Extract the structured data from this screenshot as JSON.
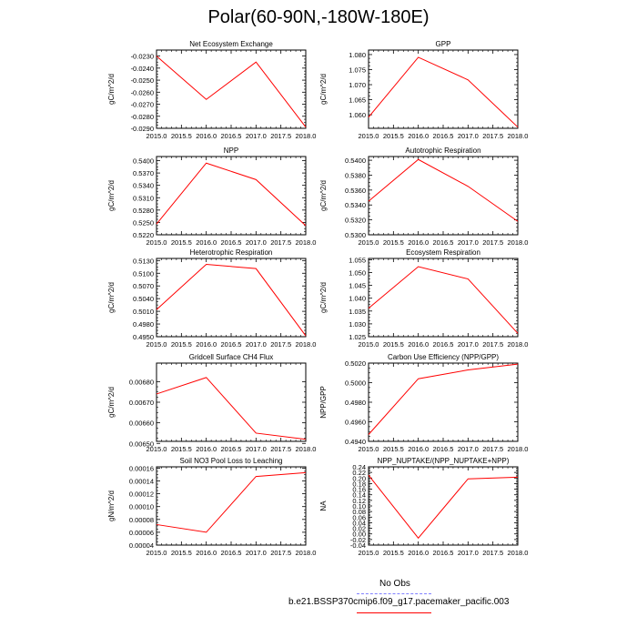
{
  "title": "Polar(60-90N,-180W-180E)",
  "legend": {
    "entries": [
      {
        "label": "No Obs",
        "color": "#8080ff",
        "style": "dashed"
      },
      {
        "label": "b.e21.BSSP370cmip6.f09_g17.pacemaker_pacific.003",
        "color": "#ff0000",
        "style": "solid"
      }
    ]
  },
  "chart_data": [
    {
      "type": "line",
      "title": "Net Ecosystem Exchange",
      "ylabel": "gC/m^2/d",
      "x": [
        2015.0,
        2016.0,
        2017.0,
        2018.0
      ],
      "xlim": [
        2015.0,
        2018.0
      ],
      "xticks": [
        "2015.0",
        "2015.5",
        "2016.0",
        "2016.5",
        "2017.0",
        "2017.5",
        "2018.0"
      ],
      "ylim": [
        -0.029,
        -0.0225
      ],
      "yticks": [
        "-0.0230",
        "-0.0240",
        "-0.0250",
        "-0.0260",
        "-0.0270",
        "-0.0280",
        "-0.0290"
      ],
      "ytick_values": [
        -0.023,
        -0.024,
        -0.025,
        -0.026,
        -0.027,
        -0.028,
        -0.029
      ],
      "series": [
        {
          "color": "#ff0000",
          "values": [
            -0.023,
            -0.0266,
            -0.0235,
            -0.0289
          ]
        }
      ]
    },
    {
      "type": "line",
      "title": "GPP",
      "ylabel": "gC/m^2/d",
      "x": [
        2015.0,
        2016.0,
        2017.0,
        2018.0
      ],
      "xlim": [
        2015.0,
        2018.0
      ],
      "xticks": [
        "2015.0",
        "2015.5",
        "2016.0",
        "2016.5",
        "2017.0",
        "2017.5",
        "2018.0"
      ],
      "ylim": [
        1.0555,
        1.0815
      ],
      "yticks": [
        "1.080",
        "1.075",
        "1.070",
        "1.065",
        "1.060"
      ],
      "ytick_values": [
        1.08,
        1.075,
        1.07,
        1.065,
        1.06
      ],
      "series": [
        {
          "color": "#ff0000",
          "values": [
            1.0592,
            1.0791,
            1.0716,
            1.0559
          ]
        }
      ]
    },
    {
      "type": "line",
      "title": "NPP",
      "ylabel": "gC/m^2/d",
      "x": [
        2015.0,
        2016.0,
        2017.0,
        2018.0
      ],
      "xlim": [
        2015.0,
        2018.0
      ],
      "xticks": [
        "2015.0",
        "2015.5",
        "2016.0",
        "2016.5",
        "2017.0",
        "2017.5",
        "2018.0"
      ],
      "ylim": [
        0.522,
        0.541
      ],
      "yticks": [
        "0.5400",
        "0.5370",
        "0.5340",
        "0.5310",
        "0.5280",
        "0.5250",
        "0.5220"
      ],
      "ytick_values": [
        0.54,
        0.537,
        0.534,
        0.531,
        0.528,
        0.525,
        0.522
      ],
      "series": [
        {
          "color": "#ff0000",
          "values": [
            0.5246,
            0.5394,
            0.5354,
            0.5242
          ]
        }
      ]
    },
    {
      "type": "line",
      "title": "Autotrophic Respiration",
      "ylabel": "gC/m^2/d",
      "x": [
        2015.0,
        2016.0,
        2017.0,
        2018.0
      ],
      "xlim": [
        2015.0,
        2018.0
      ],
      "xticks": [
        "2015.0",
        "2015.5",
        "2016.0",
        "2016.5",
        "2017.0",
        "2017.5",
        "2018.0"
      ],
      "ylim": [
        0.53,
        0.5405
      ],
      "yticks": [
        "0.5400",
        "0.5380",
        "0.5360",
        "0.5340",
        "0.5320",
        "0.5300"
      ],
      "ytick_values": [
        0.54,
        0.538,
        0.536,
        0.534,
        0.532,
        0.53
      ],
      "series": [
        {
          "color": "#ff0000",
          "values": [
            0.5345,
            0.5401,
            0.5365,
            0.5318
          ]
        }
      ]
    },
    {
      "type": "line",
      "title": "Heterotrophic Respiration",
      "ylabel": "gC/m^2/d",
      "x": [
        2015.0,
        2016.0,
        2017.0,
        2018.0
      ],
      "xlim": [
        2015.0,
        2018.0
      ],
      "xticks": [
        "2015.0",
        "2015.5",
        "2016.0",
        "2016.5",
        "2017.0",
        "2017.5",
        "2018.0"
      ],
      "ylim": [
        0.495,
        0.5135
      ],
      "yticks": [
        "0.5130",
        "0.5100",
        "0.5070",
        "0.5040",
        "0.5010",
        "0.4980",
        "0.4950"
      ],
      "ytick_values": [
        0.513,
        0.51,
        0.507,
        0.504,
        0.501,
        0.498,
        0.495
      ],
      "series": [
        {
          "color": "#ff0000",
          "values": [
            0.5014,
            0.5121,
            0.5111,
            0.4952
          ]
        }
      ]
    },
    {
      "type": "line",
      "title": "Ecosystem Respiration",
      "ylabel": "gC/m^2/d",
      "x": [
        2015.0,
        2016.0,
        2017.0,
        2018.0
      ],
      "xlim": [
        2015.0,
        2018.0
      ],
      "xticks": [
        "2015.0",
        "2015.5",
        "2016.0",
        "2016.5",
        "2017.0",
        "2017.5",
        "2018.0"
      ],
      "ylim": [
        1.025,
        1.0555
      ],
      "yticks": [
        "1.055",
        "1.050",
        "1.045",
        "1.040",
        "1.035",
        "1.030",
        "1.025"
      ],
      "ytick_values": [
        1.055,
        1.05,
        1.045,
        1.04,
        1.035,
        1.03,
        1.025
      ],
      "series": [
        {
          "color": "#ff0000",
          "values": [
            1.0361,
            1.0523,
            1.0475,
            1.0263
          ]
        }
      ]
    },
    {
      "type": "line",
      "title": "Gridcell Surface CH4 Flux",
      "ylabel": "gC/m^2/d",
      "x": [
        2015.0,
        2016.0,
        2017.0,
        2018.0
      ],
      "xlim": [
        2015.0,
        2018.0
      ],
      "xticks": [
        "2015.0",
        "2015.5",
        "2016.0",
        "2016.5",
        "2017.0",
        "2017.5",
        "2018.0"
      ],
      "ylim": [
        0.00651,
        0.00689
      ],
      "yticks": [
        "0.00680",
        "0.00670",
        "0.00660",
        "0.00650"
      ],
      "ytick_values": [
        0.0068,
        0.0067,
        0.0066,
        0.0065
      ],
      "series": [
        {
          "color": "#ff0000",
          "values": [
            0.00674,
            0.00682,
            0.00655,
            0.00652
          ]
        }
      ]
    },
    {
      "type": "line",
      "title": "Carbon Use Efficiency (NPP/GPP)",
      "ylabel": "NPP/GPP",
      "x": [
        2015.0,
        2016.0,
        2017.0,
        2018.0
      ],
      "xlim": [
        2015.0,
        2018.0
      ],
      "xticks": [
        "2015.0",
        "2015.5",
        "2016.0",
        "2016.5",
        "2017.0",
        "2017.5",
        "2018.0"
      ],
      "ylim": [
        0.494,
        0.502
      ],
      "yticks": [
        "0.5020",
        "0.5000",
        "0.4980",
        "0.4960",
        "0.4940"
      ],
      "ytick_values": [
        0.502,
        0.5,
        0.498,
        0.496,
        0.494
      ],
      "series": [
        {
          "color": "#ff0000",
          "values": [
            0.4947,
            0.5004,
            0.5013,
            0.5019
          ]
        }
      ]
    },
    {
      "type": "line",
      "title": "Soil NO3 Pool Loss to Leaching",
      "ylabel": "gN/m^2/d",
      "x": [
        2015.0,
        2016.0,
        2017.0,
        2018.0
      ],
      "xlim": [
        2015.0,
        2018.0
      ],
      "xticks": [
        "2015.0",
        "2015.5",
        "2016.0",
        "2016.5",
        "2017.0",
        "2017.5",
        "2018.0"
      ],
      "ylim": [
        4e-05,
        0.000162
      ],
      "yticks": [
        "0.00016",
        "0.00014",
        "0.00012",
        "0.00010",
        "0.00008",
        "0.00006",
        "0.00004"
      ],
      "ytick_values": [
        0.00016,
        0.00014,
        0.00012,
        0.0001,
        8e-05,
        6e-05,
        4e-05
      ],
      "series": [
        {
          "color": "#ff0000",
          "values": [
            7.2e-05,
            6e-05,
            0.000147,
            0.000153
          ]
        }
      ]
    },
    {
      "type": "line",
      "title": "NPP_NUPTAKE/(NPP_NUPTAKE+NPP)",
      "ylabel": "NA",
      "x": [
        2015.0,
        2016.0,
        2017.0,
        2018.0
      ],
      "xlim": [
        2015.0,
        2018.0
      ],
      "xticks": [
        "2015.0",
        "2015.5",
        "2016.0",
        "2016.5",
        "2017.0",
        "2017.5",
        "2018.0"
      ],
      "ylim": [
        -0.04,
        0.24
      ],
      "yticks": [
        "0.24",
        "0.22",
        "0.20",
        "0.18",
        "0.16",
        "0.14",
        "0.12",
        "0.10",
        "0.08",
        "0.06",
        "0.04",
        "0.02",
        "0.00",
        "-0.02",
        "-0.04"
      ],
      "ytick_values": [
        0.24,
        0.22,
        0.2,
        0.18,
        0.16,
        0.14,
        0.12,
        0.1,
        0.08,
        0.06,
        0.04,
        0.02,
        0.0,
        -0.02,
        -0.04
      ],
      "series": [
        {
          "color": "#ff0000",
          "values": [
            0.21,
            -0.015,
            0.197,
            0.203
          ]
        }
      ]
    }
  ]
}
